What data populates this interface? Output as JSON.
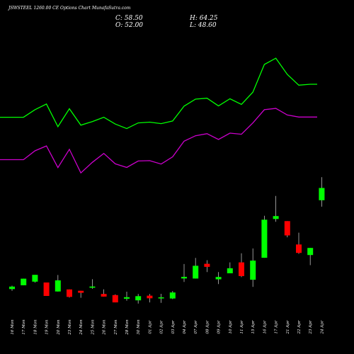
{
  "header": {
    "title": "JSWSTEEL 1260.00 CE Options Chart MunafaSutra.com",
    "close_label": "C: 58.50",
    "high_label": "H: 64.25",
    "open_label": "O: 52.00",
    "low_label": "L: 48.60"
  },
  "colors": {
    "background": "#000000",
    "up": "#00ff00",
    "down": "#ff0000",
    "line_upper": "#00ff00",
    "line_lower": "#cc00cc",
    "text": "#ffffff"
  },
  "chart_data": {
    "type": "candlestick",
    "grid": false,
    "categories": [
      "16 Mon",
      "17 Mon",
      "18 Mon",
      "19 Mon",
      "20 Mon",
      "23 Mon",
      "24 Mon",
      "25 Mon",
      "26 Mon",
      "27 Mon",
      "28 Mon",
      "30 Mon",
      "01 Apr",
      "02 Apr",
      "03 Apr",
      "04 Apr",
      "07 Apr",
      "08 Apr",
      "09 Apr",
      "10 Apr",
      "11 Apr",
      "15 Apr",
      "16 Apr",
      "17 Apr",
      "21 Apr",
      "22 Apr",
      "23 Apr",
      "24 Apr"
    ],
    "ohlc": [
      {
        "o": 4.9,
        "h": 6.7,
        "l": 3.95,
        "c": 6.2
      },
      {
        "o": 6.9,
        "h": 10.4,
        "l": 6.9,
        "c": 10.4
      },
      {
        "o": 8.85,
        "h": 12.45,
        "l": 8.35,
        "c": 12.45
      },
      {
        "o": 8.4,
        "h": 8.4,
        "l": 1.25,
        "c": 1.25
      },
      {
        "o": 3.6,
        "h": 12.35,
        "l": 3.6,
        "c": 9.5
      },
      {
        "o": 4.7,
        "h": 4.7,
        "l": 0.45,
        "c": 0.75
      },
      {
        "o": 4.0,
        "h": 4.0,
        "l": 0.3,
        "c": 2.95
      },
      {
        "o": 5.6,
        "h": 10.1,
        "l": 5.05,
        "c": 6.25
      },
      {
        "o": 2.3,
        "h": 4.8,
        "l": 0.9,
        "c": 0.9
      },
      {
        "o": 1.7,
        "h": 2.1,
        "l": -2.15,
        "c": -2.15
      },
      {
        "o": -0.2,
        "h": 3.5,
        "l": -1.3,
        "c": 0.6
      },
      {
        "o": -1.05,
        "h": 2.3,
        "l": -2.8,
        "c": 1.15
      },
      {
        "o": 1.4,
        "h": 2.3,
        "l": -2.15,
        "c": 0.0
      },
      {
        "o": 0.4,
        "h": 2.4,
        "l": -2.4,
        "c": 0.5
      },
      {
        "o": -0.1,
        "h": 3.85,
        "l": -0.45,
        "c": 3.1
      },
      {
        "o": 10.55,
        "h": 18.2,
        "l": 8.65,
        "c": 11.4
      },
      {
        "o": 10.5,
        "h": 21.4,
        "l": 10.5,
        "c": 17.25
      },
      {
        "o": 18.3,
        "h": 20.2,
        "l": 13.9,
        "c": 16.7
      },
      {
        "o": 10.05,
        "h": 13.9,
        "l": 7.55,
        "c": 11.3
      },
      {
        "o": 13.3,
        "h": 19.05,
        "l": 13.3,
        "c": 15.95
      },
      {
        "o": 19.05,
        "h": 23.85,
        "l": 11.25,
        "c": 11.8
      },
      {
        "o": 9.85,
        "h": 26.45,
        "l": 6.05,
        "c": 20.0
      },
      {
        "o": 21.5,
        "h": 43.8,
        "l": 21.5,
        "c": 41.7
      },
      {
        "o": 42.05,
        "h": 54.25,
        "l": 40.55,
        "c": 43.6
      },
      {
        "o": 40.95,
        "h": 40.95,
        "l": 32.35,
        "c": 33.35
      },
      {
        "o": 28.55,
        "h": 34.8,
        "l": 23.6,
        "c": 24.1
      },
      {
        "o": 22.95,
        "h": 26.7,
        "l": 17.6,
        "c": 26.7
      },
      {
        "o": 52.0,
        "h": 64.25,
        "l": 48.6,
        "c": 58.5
      }
    ],
    "series": [
      {
        "values": [
          96.0,
          96.0,
          100.0,
          103.0,
          91.0,
          100.5,
          91.8,
          93.7,
          96.0,
          92.4,
          90.0,
          93.0,
          93.4,
          92.6,
          94.0,
          101.9,
          105.6,
          106.1,
          102.0,
          105.8,
          102.8,
          109.3,
          124.0,
          127.3,
          118.7,
          113.0,
          113.5,
          113.5
        ]
      },
      {
        "values": [
          73.5,
          73.5,
          78.2,
          80.8,
          69.3,
          79.0,
          66.5,
          72.1,
          76.8,
          71.3,
          69.4,
          72.8,
          73.0,
          71.2,
          75.0,
          83.3,
          86.2,
          87.3,
          84.2,
          87.6,
          87.0,
          93.0,
          100.0,
          100.7,
          97.2,
          96.1,
          96.1,
          96.1
        ]
      }
    ],
    "ylim": [
      -7,
      130
    ]
  }
}
